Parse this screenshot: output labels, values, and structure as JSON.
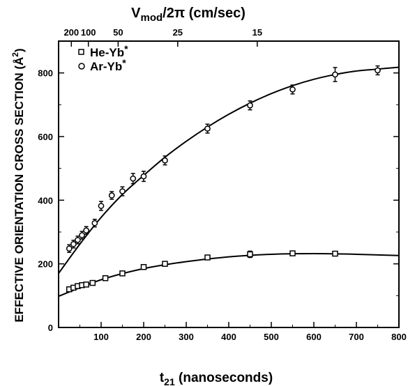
{
  "chart_data": {
    "type": "scatter",
    "title": "",
    "top_axis": {
      "label_main": "V",
      "label_sub": "mod",
      "label_rest": "/2π (cm/sec)",
      "ticks": [
        {
          "label": "200",
          "t21": 30
        },
        {
          "label": "100",
          "t21": 70
        },
        {
          "label": "50",
          "t21": 140
        },
        {
          "label": "25",
          "t21": 280
        },
        {
          "label": "15",
          "t21": 467
        }
      ]
    },
    "xlabel_main": "t",
    "xlabel_sub": "21",
    "xlabel_rest": " (nanoseconds)",
    "ylabel": "EFFECTIVE ORIENTATION CROSS SECTION (Å",
    "ylabel_sup": "2",
    "ylabel_end": ")",
    "xlim": [
      0,
      800
    ],
    "ylim": [
      0,
      900
    ],
    "xticks": [
      100,
      200,
      300,
      400,
      500,
      600,
      700,
      800
    ],
    "yticks": [
      0,
      200,
      400,
      600,
      800
    ],
    "legend_position": "top-left",
    "series": [
      {
        "name": "He-Yb",
        "name_sup": "*",
        "marker": "square",
        "points": [
          {
            "x": 25,
            "y": 120,
            "err": 5
          },
          {
            "x": 35,
            "y": 125,
            "err": 5
          },
          {
            "x": 45,
            "y": 130,
            "err": 5
          },
          {
            "x": 55,
            "y": 133,
            "err": 5
          },
          {
            "x": 65,
            "y": 135,
            "err": 5
          },
          {
            "x": 80,
            "y": 140,
            "err": 5
          },
          {
            "x": 110,
            "y": 155,
            "err": 5
          },
          {
            "x": 150,
            "y": 170,
            "err": 5
          },
          {
            "x": 200,
            "y": 190,
            "err": 5
          },
          {
            "x": 250,
            "y": 200,
            "err": 5
          },
          {
            "x": 350,
            "y": 220,
            "err": 5
          },
          {
            "x": 450,
            "y": 230,
            "err": 10
          },
          {
            "x": 550,
            "y": 233,
            "err": 5
          },
          {
            "x": 650,
            "y": 232,
            "err": 5
          }
        ],
        "fit": [
          [
            0,
            98
          ],
          [
            100,
            150
          ],
          [
            200,
            185
          ],
          [
            300,
            207
          ],
          [
            400,
            222
          ],
          [
            500,
            230
          ],
          [
            600,
            232
          ],
          [
            700,
            230
          ],
          [
            800,
            226
          ]
        ]
      },
      {
        "name": "Ar-Yb",
        "name_sup": "*",
        "marker": "circle",
        "points": [
          {
            "x": 25,
            "y": 248,
            "err": 12
          },
          {
            "x": 35,
            "y": 262,
            "err": 12
          },
          {
            "x": 45,
            "y": 275,
            "err": 12
          },
          {
            "x": 55,
            "y": 290,
            "err": 12
          },
          {
            "x": 65,
            "y": 305,
            "err": 12
          },
          {
            "x": 85,
            "y": 328,
            "err": 12
          },
          {
            "x": 100,
            "y": 382,
            "err": 14
          },
          {
            "x": 125,
            "y": 415,
            "err": 12
          },
          {
            "x": 150,
            "y": 428,
            "err": 14
          },
          {
            "x": 175,
            "y": 468,
            "err": 16
          },
          {
            "x": 200,
            "y": 475,
            "err": 16
          },
          {
            "x": 250,
            "y": 525,
            "err": 14
          },
          {
            "x": 350,
            "y": 625,
            "err": 14
          },
          {
            "x": 450,
            "y": 698,
            "err": 14
          },
          {
            "x": 550,
            "y": 748,
            "err": 14
          },
          {
            "x": 650,
            "y": 795,
            "err": 22
          },
          {
            "x": 750,
            "y": 808,
            "err": 14
          }
        ],
        "fit": [
          [
            0,
            170
          ],
          [
            50,
            262
          ],
          [
            100,
            346
          ],
          [
            150,
            418
          ],
          [
            200,
            478
          ],
          [
            250,
            535
          ],
          [
            300,
            585
          ],
          [
            350,
            630
          ],
          [
            400,
            670
          ],
          [
            450,
            705
          ],
          [
            500,
            735
          ],
          [
            550,
            760
          ],
          [
            600,
            780
          ],
          [
            650,
            795
          ],
          [
            700,
            806
          ],
          [
            750,
            812
          ],
          [
            800,
            818
          ]
        ]
      }
    ]
  }
}
